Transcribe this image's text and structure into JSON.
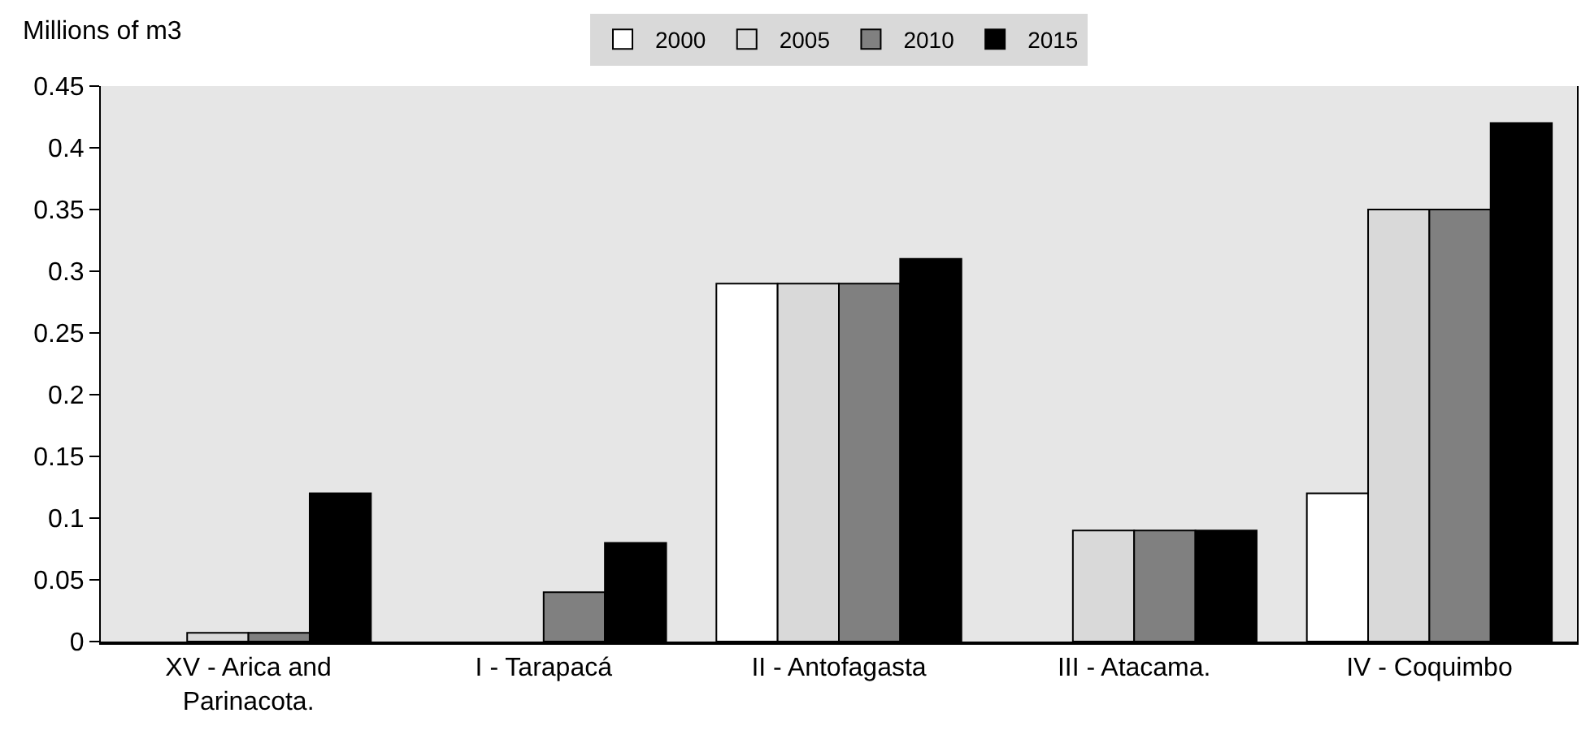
{
  "chart_data": {
    "type": "bar",
    "ylabel": "Millions of m3",
    "categories": [
      "XV - Arica and Parinacota.",
      "I - Tarapacá",
      "II - Antofagasta",
      "III - Atacama.",
      "IV - Coquimbo"
    ],
    "series": [
      {
        "name": "2000",
        "color": "#ffffff",
        "values": [
          null,
          null,
          0.29,
          null,
          0.12
        ]
      },
      {
        "name": "2005",
        "color": "#d9d9d9",
        "values": [
          0.007,
          null,
          0.29,
          0.09,
          0.35
        ]
      },
      {
        "name": "2010",
        "color": "#808080",
        "values": [
          0.007,
          0.04,
          0.29,
          0.09,
          0.35
        ]
      },
      {
        "name": "2015",
        "color": "#000000",
        "values": [
          0.12,
          0.08,
          0.31,
          0.09,
          0.42
        ]
      }
    ],
    "ylim": [
      0,
      0.45
    ],
    "yticks": [
      {
        "value": 0,
        "label": "0"
      },
      0.05,
      0.1,
      0.15,
      0.2,
      0.25,
      0.3,
      0.35,
      0.4,
      0.45
    ],
    "grid": false,
    "legend": "top"
  }
}
